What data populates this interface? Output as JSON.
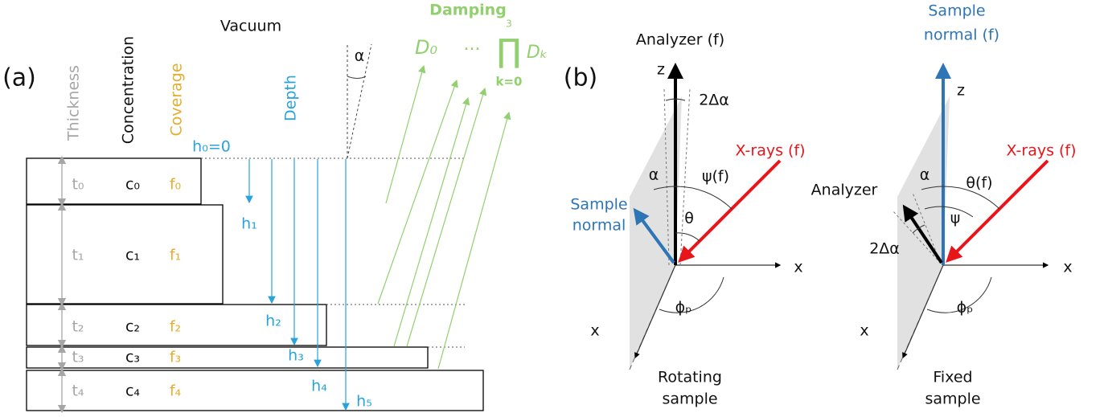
{
  "panel_a": {
    "label": "(a)",
    "headers": {
      "thickness": "Thickness",
      "concentration": "Concentration",
      "coverage": "Coverage",
      "vacuum": "Vacuum",
      "depth": "Depth",
      "damping": "Damping"
    },
    "alpha": "α",
    "damping_terms": {
      "first": "D₀",
      "ellipsis": "...",
      "product": "∏",
      "upper": "3",
      "lower": "k=0",
      "factor": "Dₖ"
    },
    "surface_depth": "h₀=0",
    "layers": [
      {
        "thickness": "t₀",
        "concentration": "c₀",
        "coverage": "f₀"
      },
      {
        "thickness": "t₁",
        "concentration": "c₁",
        "coverage": "f₁"
      },
      {
        "thickness": "t₂",
        "concentration": "c₂",
        "coverage": "f₂"
      },
      {
        "thickness": "t₃",
        "concentration": "c₃",
        "coverage": "f₃"
      },
      {
        "thickness": "t₄",
        "concentration": "c₄",
        "coverage": "f₄"
      }
    ],
    "depths": [
      "h₁",
      "h₂",
      "h₃",
      "h₄",
      "h₅"
    ]
  },
  "panel_b": {
    "label": "(b)",
    "rotating": {
      "analyzer": "Analyzer (f)",
      "z": "z",
      "delta": "2Δα",
      "xrays": "X-rays (f)",
      "psi": "ψ(f)",
      "alpha": "α",
      "theta": "θ",
      "normal": [
        "Sample",
        "normal"
      ],
      "x_right": "x",
      "x_diag": "x",
      "phi": "ϕₚ",
      "caption": [
        "Rotating",
        "sample"
      ]
    },
    "fixed": {
      "normal": [
        "Sample",
        "normal (f)"
      ],
      "z": "z",
      "xrays": "X-rays (f)",
      "analyzer": "Analyzer",
      "alpha": "α",
      "theta": "θ(f)",
      "psi": "ψ",
      "delta": "2Δα",
      "x_right": "x",
      "x_diag": "x",
      "phi": "ϕₚ",
      "caption": [
        "Fixed",
        "sample"
      ]
    }
  }
}
